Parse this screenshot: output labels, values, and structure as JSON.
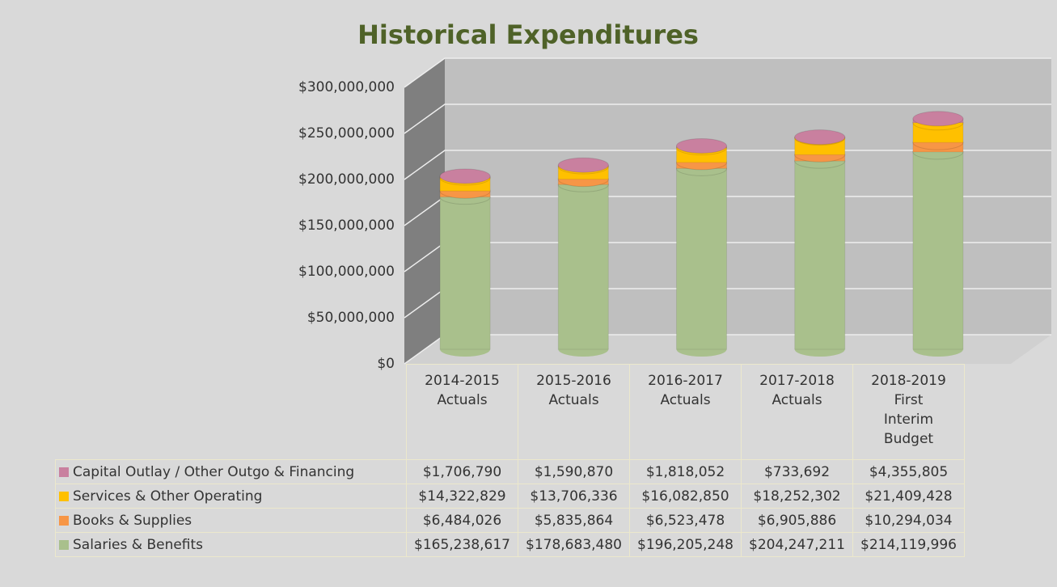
{
  "chart_data": {
    "type": "stacked_bar_3d",
    "title": "Historical Expenditures",
    "categories": [
      "2014-2015 Actuals",
      "2015-2016 Actuals",
      "2016-2017 Actuals",
      "2017-2018 Actuals",
      "2018-2019 First Interim Budget"
    ],
    "series": [
      {
        "name": "Salaries & Benefits",
        "color": "#a9c08c",
        "values": [
          165238617,
          178683480,
          196205248,
          204247211,
          214119996
        ],
        "value_labels": [
          "$165,238,617",
          "$178,683,480",
          "$196,205,248",
          "$204,247,211",
          "$214,119,996"
        ]
      },
      {
        "name": "Books & Supplies",
        "color": "#f79646",
        "values": [
          6484026,
          5835864,
          6523478,
          6905886,
          10294034
        ],
        "value_labels": [
          "$6,484,026",
          "$5,835,864",
          "$6,523,478",
          "$6,905,886",
          "$10,294,034"
        ]
      },
      {
        "name": "Services & Other Operating",
        "color": "#ffc000",
        "values": [
          14322829,
          13706336,
          16082850,
          18252302,
          21409428
        ],
        "value_labels": [
          "$14,322,829",
          "$13,706,336",
          "$16,082,850",
          "$18,252,302",
          "$21,409,428"
        ]
      },
      {
        "name": "Capital Outlay / Other Outgo & Financing",
        "color": "#c9809f",
        "values": [
          1706790,
          1590870,
          1818052,
          733692,
          4355805
        ],
        "value_labels": [
          "$1,706,790",
          "$1,590,870",
          "$1,818,052",
          "$733,692",
          "$4,355,805"
        ]
      }
    ],
    "ylim": [
      0,
      300000000
    ],
    "yticks": [
      {
        "value": 0,
        "label": "$0"
      },
      {
        "value": 50000000,
        "label": "$50,000,000"
      },
      {
        "value": 100000000,
        "label": "$100,000,000"
      },
      {
        "value": 150000000,
        "label": "$150,000,000"
      },
      {
        "value": 200000000,
        "label": "$200,000,000"
      },
      {
        "value": 250000000,
        "label": "$250,000,000"
      },
      {
        "value": 300000000,
        "label": "$300,000,000"
      }
    ],
    "grid": true,
    "legend": "table"
  }
}
